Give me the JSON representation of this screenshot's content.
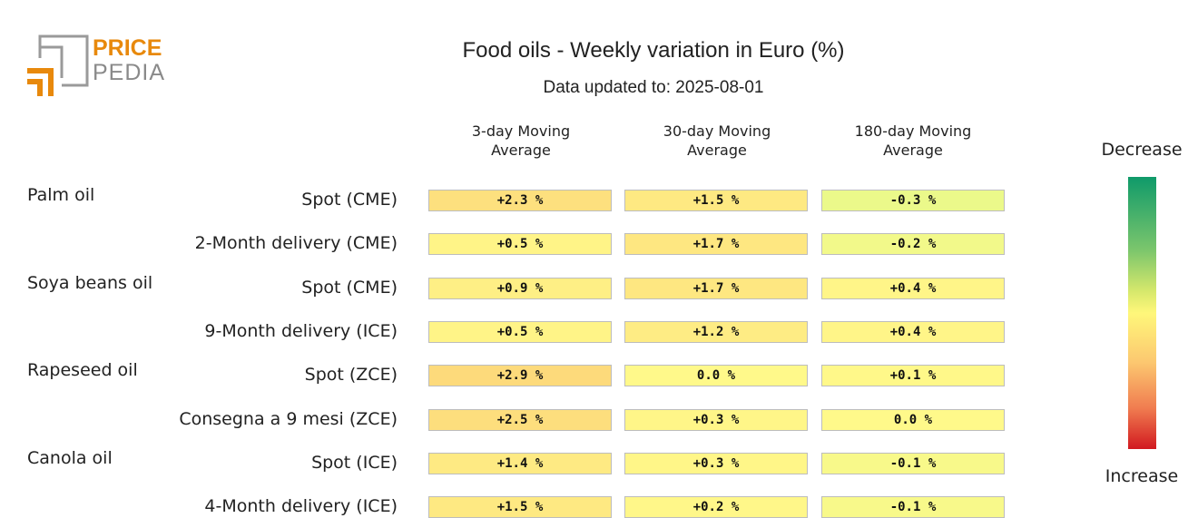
{
  "logo": {
    "line1": "PRICE",
    "line2": "PEDIA",
    "color_accent": "#e8890c",
    "color_gray": "#8a8a8a"
  },
  "chart_data": {
    "type": "heatmap",
    "title": "Food oils - Weekly variation in Euro (%)",
    "subtitle": "Data updated to: 2025-08-01",
    "columns": [
      "3-day Moving Average",
      "30-day Moving Average",
      "180-day Moving Average"
    ],
    "unit": "%",
    "groups": [
      {
        "name": "Palm oil",
        "rows": [
          {
            "label": "Spot (CME)",
            "values": [
              2.3,
              1.5,
              -0.3
            ],
            "text": [
              "+2.3 %",
              "+1.5 %",
              "-0.3 %"
            ]
          },
          {
            "label": "2-Month delivery (CME)",
            "values": [
              0.5,
              1.7,
              -0.2
            ],
            "text": [
              "+0.5 %",
              "+1.7 %",
              "-0.2 %"
            ]
          }
        ]
      },
      {
        "name": "Soya beans oil",
        "rows": [
          {
            "label": "Spot (CME)",
            "values": [
              0.9,
              1.7,
              0.4
            ],
            "text": [
              "+0.9 %",
              "+1.7 %",
              "+0.4 %"
            ]
          },
          {
            "label": "9-Month delivery (ICE)",
            "values": [
              0.5,
              1.2,
              0.4
            ],
            "text": [
              "+0.5 %",
              "+1.2 %",
              "+0.4 %"
            ]
          }
        ]
      },
      {
        "name": "Rapeseed oil",
        "rows": [
          {
            "label": "Spot (ZCE)",
            "values": [
              2.9,
              0.0,
              0.1
            ],
            "text": [
              "+2.9 %",
              "0.0 %",
              "+0.1 %"
            ]
          },
          {
            "label": "Consegna a 9 mesi (ZCE)",
            "values": [
              2.5,
              0.3,
              0.0
            ],
            "text": [
              "+2.5 %",
              "+0.3 %",
              "0.0 %"
            ]
          }
        ]
      },
      {
        "name": "Canola oil",
        "rows": [
          {
            "label": "Spot (ICE)",
            "values": [
              1.4,
              0.3,
              -0.1
            ],
            "text": [
              "+1.4 %",
              "+0.3 %",
              "-0.1 %"
            ]
          },
          {
            "label": "4-Month delivery (ICE)",
            "values": [
              1.5,
              0.2,
              -0.1
            ],
            "text": [
              "+1.5 %",
              "+0.2 %",
              "-0.1 %"
            ]
          }
        ]
      }
    ],
    "legend": {
      "top": "Decrease",
      "bottom": "Increase",
      "colors": [
        "#0f9a6a",
        "#7cc66c",
        "#fff77a",
        "#fcc870",
        "#d11920"
      ]
    }
  }
}
